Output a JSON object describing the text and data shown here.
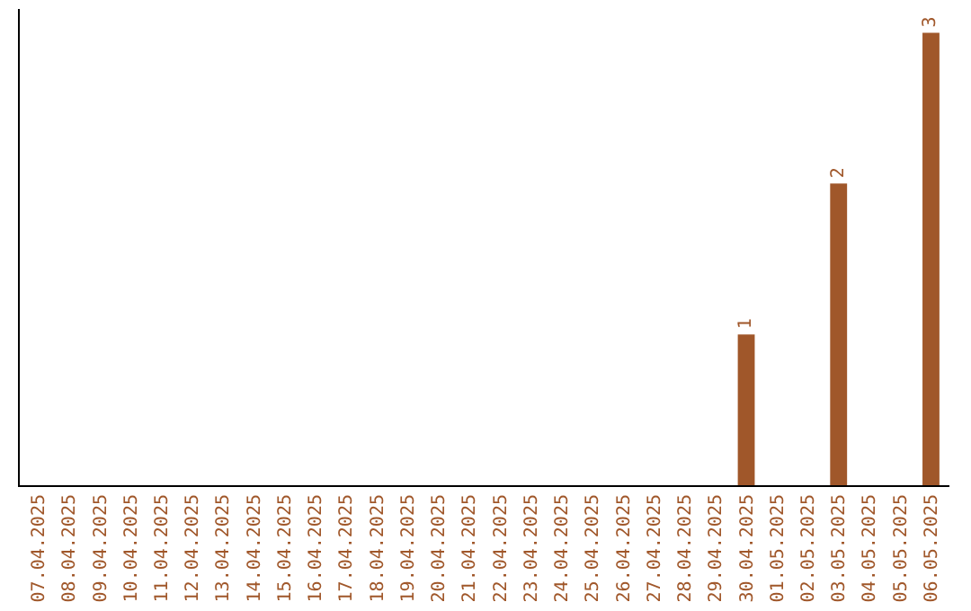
{
  "chart_data": {
    "type": "bar",
    "categories": [
      "07.04.2025",
      "08.04.2025",
      "09.04.2025",
      "10.04.2025",
      "11.04.2025",
      "12.04.2025",
      "13.04.2025",
      "14.04.2025",
      "15.04.2025",
      "16.04.2025",
      "17.04.2025",
      "18.04.2025",
      "19.04.2025",
      "20.04.2025",
      "21.04.2025",
      "22.04.2025",
      "23.04.2025",
      "24.04.2025",
      "25.04.2025",
      "26.04.2025",
      "27.04.2025",
      "28.04.2025",
      "29.04.2025",
      "30.04.2025",
      "01.05.2025",
      "02.05.2025",
      "03.05.2025",
      "04.05.2025",
      "05.05.2025",
      "06.05.2025"
    ],
    "values": [
      null,
      null,
      null,
      null,
      null,
      null,
      null,
      null,
      null,
      null,
      null,
      null,
      null,
      null,
      null,
      null,
      null,
      null,
      null,
      null,
      null,
      null,
      null,
      1,
      null,
      null,
      2,
      null,
      null,
      3
    ],
    "data_labels": true,
    "color": "#a0572a",
    "legend": false,
    "tick_labels": "x"
  }
}
